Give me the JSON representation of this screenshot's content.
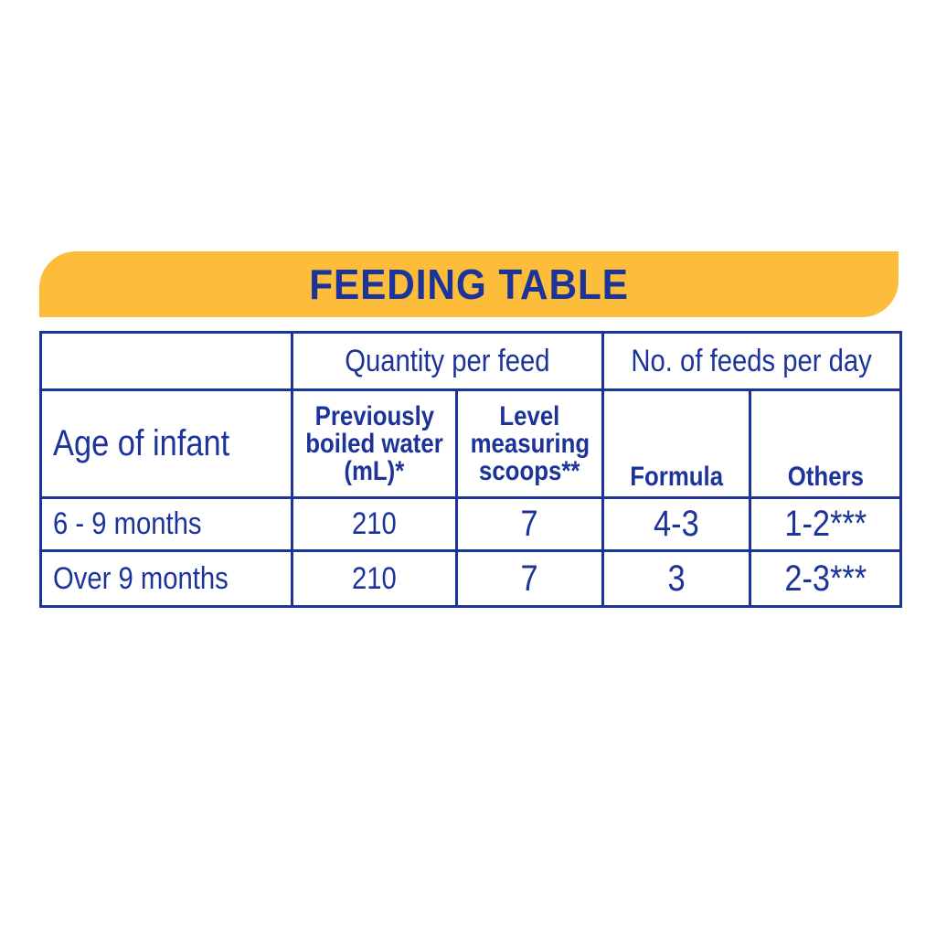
{
  "title": "FEEDING TABLE",
  "headers": {
    "quantity_group": "Quantity per feed",
    "feeds_group": "No. of feeds per day",
    "age": "Age of infant",
    "water_line1": "Previously",
    "water_line2": "boiled water",
    "water_line3": "(mL)*",
    "scoops_line1": "Level",
    "scoops_line2": "measuring",
    "scoops_line3": "scoops**",
    "formula": "Formula",
    "others": "Others"
  },
  "rows": [
    {
      "age": "6 - 9 months",
      "water": "210",
      "scoops": "7",
      "formula": "4-3",
      "others": "1-2***"
    },
    {
      "age": "Over 9 months",
      "water": "210",
      "scoops": "7",
      "formula": "3",
      "others": "2-3***"
    }
  ],
  "colors": {
    "banner": "#fbbd3a",
    "text": "#1c3399",
    "border": "#1c3399"
  }
}
